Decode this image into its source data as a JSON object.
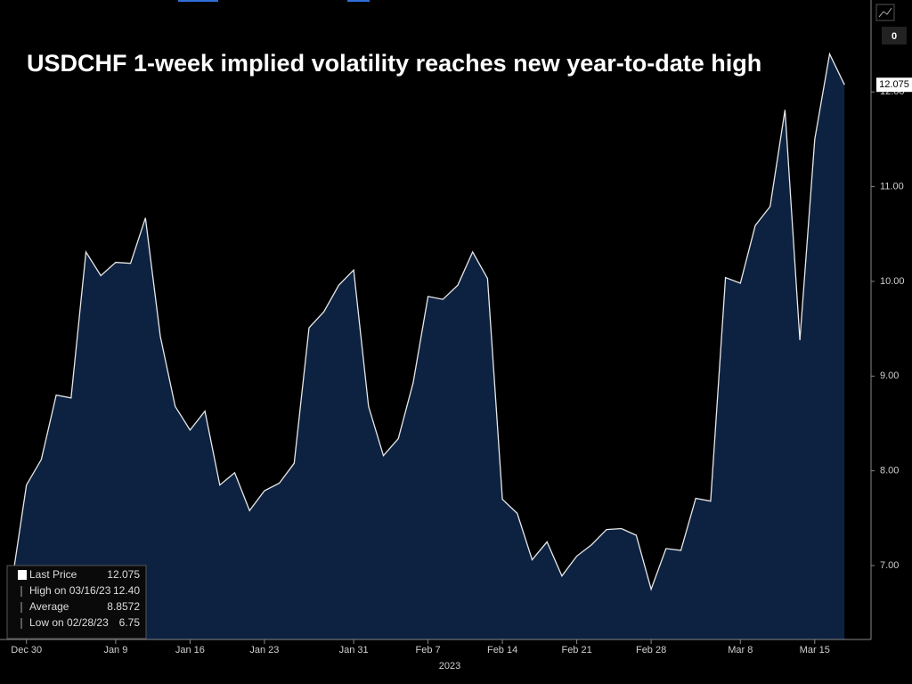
{
  "chart_data": {
    "type": "area",
    "title": "USDCHF 1-week implied volatility reaches new year-to-date high",
    "categories": [
      null,
      "Dec 30",
      null,
      null,
      null,
      null,
      null,
      "Jan 9",
      null,
      null,
      null,
      null,
      "Jan 16",
      null,
      null,
      null,
      null,
      "Jan 23",
      null,
      null,
      null,
      null,
      null,
      "Jan 31",
      null,
      null,
      null,
      null,
      "Feb 7",
      null,
      null,
      null,
      null,
      "Feb 14",
      null,
      null,
      null,
      null,
      "Feb 21",
      null,
      null,
      null,
      null,
      "Feb 28",
      null,
      null,
      null,
      null,
      null,
      "Mar 8",
      null,
      null,
      null,
      null,
      "Mar 15",
      null,
      null
    ],
    "year_label": "2023",
    "series": [
      {
        "name": "Last Price",
        "color": "#e8e8e8",
        "fill": "#0d2240",
        "values": [
          6.8,
          7.85,
          8.12,
          8.8,
          8.77,
          10.31,
          10.06,
          10.2,
          10.19,
          10.67,
          9.42,
          8.68,
          8.43,
          8.63,
          7.85,
          7.98,
          7.58,
          7.79,
          7.87,
          8.08,
          9.51,
          9.68,
          9.96,
          10.12,
          8.68,
          8.16,
          8.34,
          8.93,
          9.84,
          9.81,
          9.96,
          10.31,
          10.03,
          7.7,
          7.55,
          7.06,
          7.25,
          6.89,
          7.1,
          7.22,
          7.38,
          7.39,
          7.32,
          6.75,
          7.18,
          7.16,
          7.71,
          7.68,
          10.04,
          9.98,
          10.59,
          10.79,
          11.81,
          9.38,
          11.5,
          12.4,
          12.075
        ]
      }
    ],
    "ylim": [
      6.22,
      12.97
    ],
    "yticks": [
      {
        "value": 7,
        "label": "7.00"
      },
      {
        "value": 8,
        "label": "8.00"
      },
      {
        "value": 9,
        "label": "9.00"
      },
      {
        "value": 10,
        "label": "10.00"
      },
      {
        "value": 11,
        "label": "11.00"
      },
      {
        "value": 12,
        "label": "12.00"
      }
    ],
    "grid": false,
    "legend_corner": "bottom-left",
    "stats": [
      {
        "label": "Last Price",
        "value": "12.075"
      },
      {
        "label": "High on 03/16/23",
        "value": "12.40"
      },
      {
        "label": "Average",
        "value": "8.8572"
      },
      {
        "label": "Low on 02/28/23",
        "value": "6.75"
      }
    ],
    "button_label": "0"
  }
}
